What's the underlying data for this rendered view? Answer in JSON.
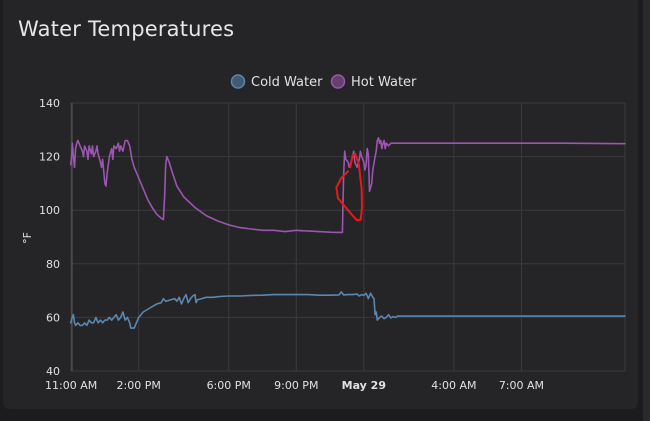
{
  "card": {
    "title": "Water Temperatures"
  },
  "chart_data": {
    "type": "line",
    "title": "Water Temperatures",
    "ylabel": "°F",
    "xlabel": "",
    "ylim": [
      40,
      140
    ],
    "yticks": [
      40,
      60,
      80,
      100,
      120,
      140
    ],
    "xlim": [
      10.95,
      35.6
    ],
    "xticks": [
      {
        "label": "11:00 AM",
        "h": 11,
        "bold": false
      },
      {
        "label": "2:00 PM",
        "h": 14,
        "bold": false
      },
      {
        "label": "6:00 PM",
        "h": 18,
        "bold": false
      },
      {
        "label": "9:00 PM",
        "h": 21,
        "bold": false
      },
      {
        "label": "May 29",
        "h": 24,
        "bold": true
      },
      {
        "label": "4:00 AM",
        "h": 28,
        "bold": false
      },
      {
        "label": "7:00 AM",
        "h": 31,
        "bold": false
      }
    ],
    "legend_position": "top-center",
    "series": [
      {
        "name": "Cold Water",
        "color": "#5b86b0",
        "points": [
          [
            10.98,
            58
          ],
          [
            11.05,
            60
          ],
          [
            11.1,
            61
          ],
          [
            11.15,
            58
          ],
          [
            11.2,
            57
          ],
          [
            11.3,
            58
          ],
          [
            11.4,
            57
          ],
          [
            11.5,
            57
          ],
          [
            11.6,
            58
          ],
          [
            11.7,
            57
          ],
          [
            11.8,
            59
          ],
          [
            11.9,
            58
          ],
          [
            12.0,
            58
          ],
          [
            12.1,
            60
          ],
          [
            12.2,
            58
          ],
          [
            12.3,
            59
          ],
          [
            12.4,
            58
          ],
          [
            12.5,
            59
          ],
          [
            12.6,
            59
          ],
          [
            12.7,
            60
          ],
          [
            12.8,
            59
          ],
          [
            12.9,
            60
          ],
          [
            13.0,
            61
          ],
          [
            13.1,
            59
          ],
          [
            13.2,
            60
          ],
          [
            13.3,
            62
          ],
          [
            13.4,
            59
          ],
          [
            13.5,
            60
          ],
          [
            13.6,
            58
          ],
          [
            13.65,
            56
          ],
          [
            13.7,
            56
          ],
          [
            13.8,
            56
          ],
          [
            13.9,
            58
          ],
          [
            14.0,
            60
          ],
          [
            14.2,
            62
          ],
          [
            14.5,
            63.5
          ],
          [
            14.8,
            65
          ],
          [
            15.0,
            65.5
          ],
          [
            15.1,
            67
          ],
          [
            15.2,
            66
          ],
          [
            15.4,
            66.5
          ],
          [
            15.6,
            67
          ],
          [
            15.7,
            66
          ],
          [
            15.8,
            67.5
          ],
          [
            15.9,
            65
          ],
          [
            16.0,
            67
          ],
          [
            16.1,
            68.5
          ],
          [
            16.2,
            65.5
          ],
          [
            16.3,
            67
          ],
          [
            16.4,
            68
          ],
          [
            16.5,
            68.5
          ],
          [
            16.55,
            65.5
          ],
          [
            16.6,
            66.5
          ],
          [
            16.8,
            67
          ],
          [
            17.0,
            67.5
          ],
          [
            17.3,
            67.5
          ],
          [
            17.6,
            67.8
          ],
          [
            18.0,
            68
          ],
          [
            18.5,
            68
          ],
          [
            19.0,
            68.2
          ],
          [
            19.5,
            68.3
          ],
          [
            20.0,
            68.5
          ],
          [
            20.5,
            68.5
          ],
          [
            21.0,
            68.5
          ],
          [
            21.5,
            68.5
          ],
          [
            22.0,
            68.3
          ],
          [
            22.5,
            68.3
          ],
          [
            22.9,
            68.4
          ],
          [
            23.0,
            69.5
          ],
          [
            23.1,
            68.4
          ],
          [
            23.3,
            68.5
          ],
          [
            23.5,
            68.5
          ],
          [
            23.7,
            68.7
          ],
          [
            23.8,
            68
          ],
          [
            23.9,
            68.5
          ],
          [
            24.0,
            68.2
          ],
          [
            24.1,
            69
          ],
          [
            24.2,
            67
          ],
          [
            24.3,
            69
          ],
          [
            24.4,
            67.5
          ],
          [
            24.45,
            67
          ],
          [
            24.5,
            61
          ],
          [
            24.55,
            62
          ],
          [
            24.6,
            59
          ],
          [
            24.7,
            60
          ],
          [
            24.8,
            60.5
          ],
          [
            24.9,
            59.5
          ],
          [
            25.0,
            60
          ],
          [
            25.1,
            61
          ],
          [
            25.2,
            59.8
          ],
          [
            25.3,
            60.3
          ],
          [
            25.4,
            60
          ],
          [
            25.5,
            60.5
          ],
          [
            26.0,
            60.5
          ],
          [
            28.0,
            60.5
          ],
          [
            30.0,
            60.5
          ],
          [
            32.0,
            60.5
          ],
          [
            35.6,
            60.5
          ]
        ]
      },
      {
        "name": "Hot Water",
        "color": "#9c55b0",
        "points": [
          [
            10.98,
            117
          ],
          [
            11.02,
            120
          ],
          [
            11.05,
            125
          ],
          [
            11.1,
            120
          ],
          [
            11.15,
            116
          ],
          [
            11.2,
            123
          ],
          [
            11.25,
            125
          ],
          [
            11.3,
            126
          ],
          [
            11.4,
            124
          ],
          [
            11.5,
            122
          ],
          [
            11.55,
            120
          ],
          [
            11.6,
            124
          ],
          [
            11.7,
            122
          ],
          [
            11.75,
            119
          ],
          [
            11.8,
            124
          ],
          [
            11.9,
            121
          ],
          [
            11.95,
            124
          ],
          [
            12.0,
            120
          ],
          [
            12.1,
            122
          ],
          [
            12.15,
            124
          ],
          [
            12.2,
            121
          ],
          [
            12.3,
            118
          ],
          [
            12.35,
            116
          ],
          [
            12.4,
            119
          ],
          [
            12.5,
            110
          ],
          [
            12.55,
            109
          ],
          [
            12.6,
            114
          ],
          [
            12.7,
            120
          ],
          [
            12.8,
            123
          ],
          [
            12.85,
            119
          ],
          [
            12.9,
            124
          ],
          [
            13.0,
            123
          ],
          [
            13.1,
            125
          ],
          [
            13.15,
            122
          ],
          [
            13.2,
            124
          ],
          [
            13.3,
            122
          ],
          [
            13.4,
            126
          ],
          [
            13.5,
            126
          ],
          [
            13.6,
            124
          ],
          [
            13.7,
            119
          ],
          [
            13.8,
            116
          ],
          [
            14.0,
            112
          ],
          [
            14.2,
            108
          ],
          [
            14.4,
            104
          ],
          [
            14.6,
            101
          ],
          [
            14.8,
            98.5
          ],
          [
            15.0,
            97
          ],
          [
            15.1,
            96.5
          ],
          [
            15.15,
            105
          ],
          [
            15.2,
            117
          ],
          [
            15.25,
            120
          ],
          [
            15.35,
            118
          ],
          [
            15.5,
            114
          ],
          [
            15.7,
            109
          ],
          [
            16.0,
            105
          ],
          [
            16.5,
            101
          ],
          [
            17.0,
            98
          ],
          [
            17.5,
            96
          ],
          [
            18.0,
            94.5
          ],
          [
            18.5,
            93.5
          ],
          [
            19.0,
            93
          ],
          [
            19.5,
            92.5
          ],
          [
            20.0,
            92.5
          ],
          [
            20.5,
            92
          ],
          [
            21.0,
            92.5
          ],
          [
            21.3,
            92.3
          ],
          [
            21.6,
            92.2
          ],
          [
            22.0,
            92
          ],
          [
            22.5,
            91.8
          ],
          [
            22.8,
            91.7
          ],
          [
            23.05,
            91.7
          ],
          [
            23.1,
            113
          ],
          [
            23.15,
            122
          ],
          [
            23.2,
            119
          ],
          [
            23.3,
            118
          ],
          [
            23.35,
            116
          ],
          [
            23.4,
            117
          ],
          [
            23.5,
            120
          ],
          [
            23.55,
            122
          ],
          [
            23.6,
            118
          ],
          [
            23.7,
            116
          ],
          [
            23.8,
            119
          ],
          [
            23.85,
            122
          ],
          [
            23.9,
            120
          ],
          [
            24.0,
            118
          ],
          [
            24.05,
            115
          ],
          [
            24.1,
            117
          ],
          [
            24.15,
            123
          ],
          [
            24.2,
            121
          ],
          [
            24.25,
            107
          ],
          [
            24.35,
            110
          ],
          [
            24.4,
            115
          ],
          [
            24.5,
            120
          ],
          [
            24.55,
            122
          ],
          [
            24.6,
            126
          ],
          [
            24.65,
            127
          ],
          [
            24.7,
            125
          ],
          [
            24.75,
            126
          ],
          [
            24.8,
            123
          ],
          [
            24.85,
            125
          ],
          [
            24.9,
            126
          ],
          [
            24.95,
            123
          ],
          [
            25.0,
            125
          ],
          [
            25.1,
            124
          ],
          [
            25.2,
            125
          ],
          [
            25.5,
            125
          ],
          [
            27.0,
            125
          ],
          [
            29.0,
            125
          ],
          [
            31.0,
            125
          ],
          [
            33.0,
            125
          ],
          [
            35.6,
            124.8
          ]
        ]
      }
    ],
    "annotation": {
      "type": "hand-drawn-circle",
      "color": "#e8191a",
      "points": [
        [
          23.4,
          116
        ],
        [
          23.5,
          120.5
        ],
        [
          23.62,
          121
        ],
        [
          23.78,
          117
        ],
        [
          23.9,
          108
        ],
        [
          23.92,
          101
        ],
        [
          23.86,
          96.5
        ],
        [
          23.7,
          96.2
        ],
        [
          23.45,
          98.5
        ],
        [
          23.15,
          101.5
        ],
        [
          22.85,
          104.5
        ],
        [
          22.78,
          108.5
        ],
        [
          23.0,
          112
        ],
        [
          23.3,
          114.5
        ]
      ]
    }
  }
}
